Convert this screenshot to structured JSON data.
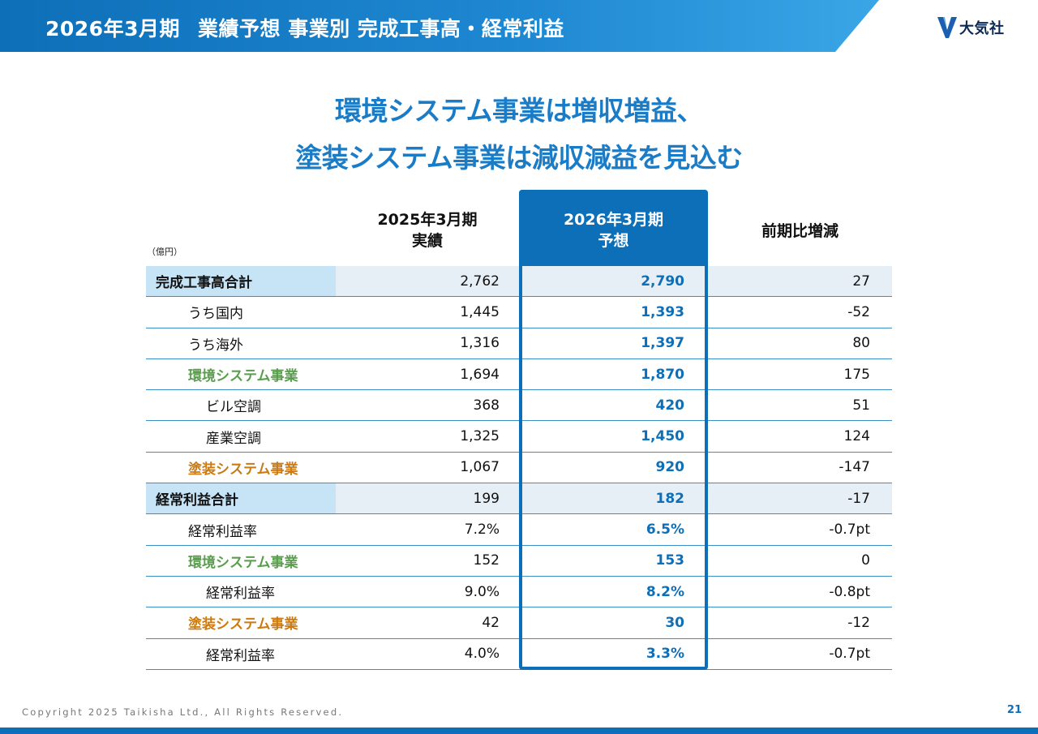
{
  "header": {
    "title_period": "2026年3月期",
    "title_main": "業績予想 事業別 完成工事高・経常利益",
    "band_color_start": "#0d6fb8",
    "band_color_end": "#3aa6e6"
  },
  "logo": {
    "text": "大気社",
    "icon": "taikisha-v-logo-icon"
  },
  "headline": {
    "line1": "環境システム事業は増収増益、",
    "line2": "塗装システム事業は減収減益を見込む"
  },
  "table": {
    "unit": "（億円）",
    "columns": {
      "prev_line1": "2025年3月期",
      "prev_line2": "実績",
      "fcst_line1": "2026年3月期",
      "fcst_line2": "予想",
      "diff": "前期比増減"
    },
    "rows": [
      {
        "label": "完成工事高合計",
        "prev": "2,762",
        "fcst": "2,790",
        "diff": "27"
      },
      {
        "label": "うち国内",
        "prev": "1,445",
        "fcst": "1,393",
        "diff": "-52"
      },
      {
        "label": "うち海外",
        "prev": "1,316",
        "fcst": "1,397",
        "diff": "80"
      },
      {
        "label": "環境システム事業",
        "prev": "1,694",
        "fcst": "1,870",
        "diff": "175"
      },
      {
        "label": "ビル空調",
        "prev": "368",
        "fcst": "420",
        "diff": "51"
      },
      {
        "label": "産業空調",
        "prev": "1,325",
        "fcst": "1,450",
        "diff": "124"
      },
      {
        "label": "塗装システム事業",
        "prev": "1,067",
        "fcst": "920",
        "diff": "-147"
      },
      {
        "label": "経常利益合計",
        "prev": "199",
        "fcst": "182",
        "diff": "-17"
      },
      {
        "label": "経常利益率",
        "prev": "7.2%",
        "fcst": "6.5%",
        "diff": "-0.7pt"
      },
      {
        "label": "環境システム事業",
        "prev": "152",
        "fcst": "153",
        "diff": "0"
      },
      {
        "label": "経常利益率",
        "prev": "9.0%",
        "fcst": "8.2%",
        "diff": "-0.8pt"
      },
      {
        "label": "塗装システム事業",
        "prev": "42",
        "fcst": "30",
        "diff": "-12"
      },
      {
        "label": "経常利益率",
        "prev": "4.0%",
        "fcst": "3.3%",
        "diff": "-0.7pt"
      }
    ]
  },
  "colors": {
    "accent_blue": "#0d6fb8",
    "headline_blue": "#1a7cc6",
    "environment_green": "#5a9d4e",
    "painting_orange": "#cc7a12"
  },
  "footer": {
    "copyright": "Copyright 2025 Taikisha Ltd., All Rights Reserved.",
    "page_number": "21"
  }
}
